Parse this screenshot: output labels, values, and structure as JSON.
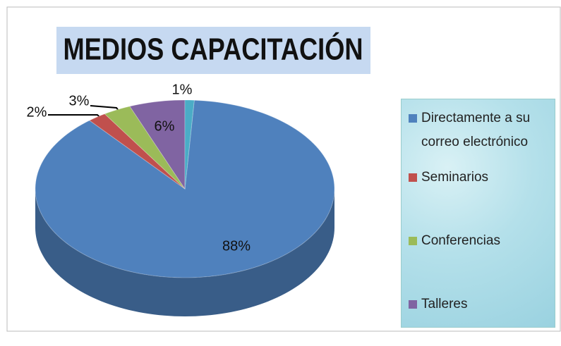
{
  "chart_data": {
    "type": "pie3d",
    "title": "MEDIOS CAPACITACIÓN",
    "categories": [
      "Directamente a su correo electrónico",
      "Seminarios",
      "Conferencias",
      "Talleres",
      null
    ],
    "values": [
      88,
      2,
      3,
      6,
      1
    ],
    "value_labels": [
      "88%",
      "2%",
      "3%",
      "6%",
      "1%"
    ],
    "colors": [
      "#4f81bd",
      "#c0504d",
      "#9bbb59",
      "#8064a2",
      "#4bacc6"
    ],
    "legend": "right"
  }
}
